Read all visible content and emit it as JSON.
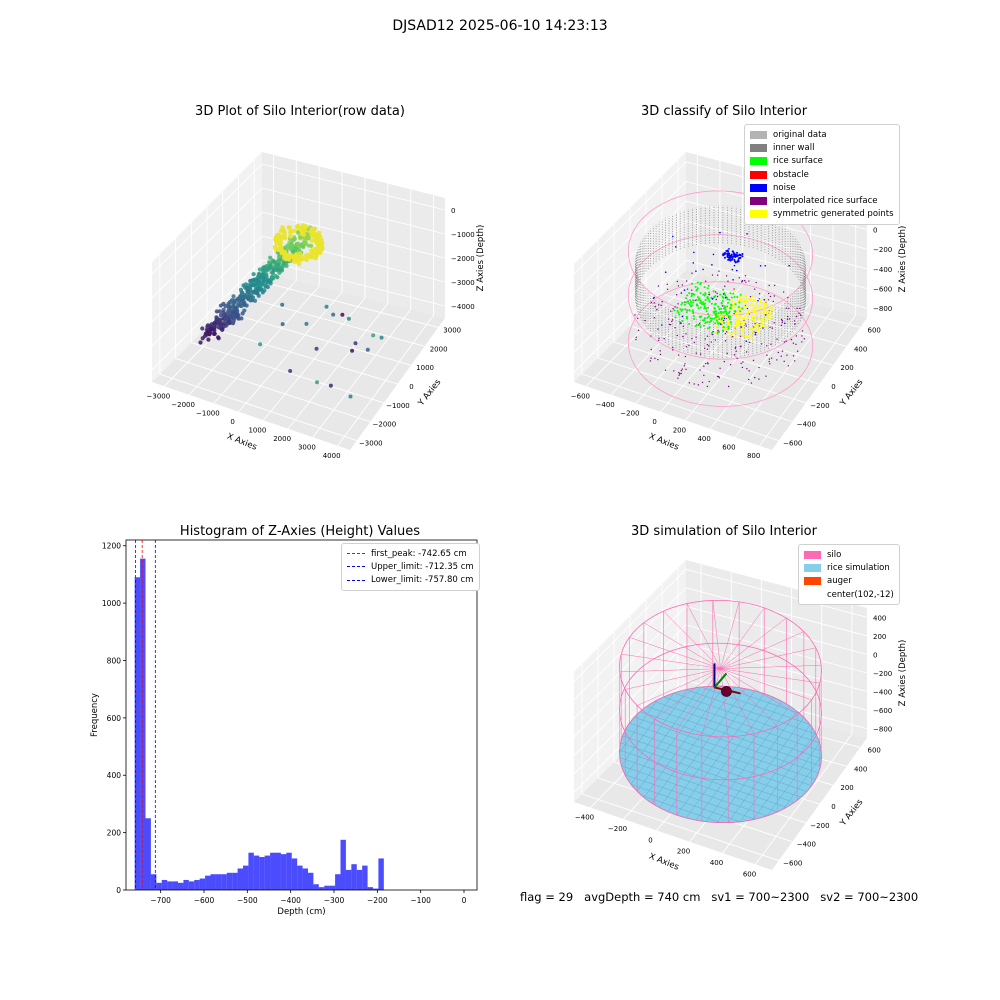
{
  "suptitle": "DJSAD12 2025-06-10 14:23:13",
  "panels": {
    "raw": {
      "title": "3D Plot of Silo Interior(row data)",
      "xlabel": "X Axies",
      "ylabel": "Y Axies",
      "zlabel": "Z Axies (Depth)",
      "xticks": [
        "−3000",
        "−2000",
        "−1000",
        "0",
        "1000",
        "2000",
        "3000",
        "4000"
      ],
      "yticks": [
        "−3000",
        "−2000",
        "−1000",
        "0",
        "1000",
        "2000",
        "3000"
      ],
      "zticks": [
        "−4000",
        "−3000",
        "−2000",
        "−1000",
        "0"
      ]
    },
    "classify": {
      "title": "3D classify of Silo Interior",
      "xlabel": "X Axies",
      "ylabel": "Y Axies",
      "zlabel": "Z Axies (Depth)",
      "xticks": [
        "−600",
        "−400",
        "−200",
        "0",
        "200",
        "400",
        "600",
        "800"
      ],
      "yticks": [
        "−600",
        "−400",
        "−200",
        "0",
        "200",
        "400",
        "600"
      ],
      "zticks": [
        "−800",
        "−600",
        "−400",
        "−200",
        "0",
        "200"
      ],
      "legend": [
        {
          "label": "original data",
          "color": "#b3b3b3"
        },
        {
          "label": "inner wall",
          "color": "#808080"
        },
        {
          "label": "rice surface",
          "color": "#00ff00"
        },
        {
          "label": "obstacle",
          "color": "#ff0000"
        },
        {
          "label": "noise",
          "color": "#0000ff"
        },
        {
          "label": "interpolated rice surface",
          "color": "#800080"
        },
        {
          "label": "symmetric generated points",
          "color": "#ffff00"
        }
      ]
    },
    "simulation": {
      "title": "3D simulation of Silo Interior",
      "xlabel": "X Axies",
      "ylabel": "Y Axies",
      "zlabel": "Z Axies (Depth)",
      "xticks": [
        "−400",
        "−200",
        "0",
        "200",
        "400",
        "600"
      ],
      "yticks": [
        "−600",
        "−400",
        "−200",
        "0",
        "200",
        "400",
        "600"
      ],
      "zticks": [
        "−800",
        "−600",
        "−400",
        "−200",
        "0",
        "200",
        "400"
      ],
      "legend": [
        {
          "label": "silo",
          "color": "#ff69b4"
        },
        {
          "label": "rice simulation",
          "color": "#87ceeb"
        },
        {
          "label": "auger",
          "color": "#ff4500"
        },
        {
          "label": "center(102,-12)",
          "color": ""
        }
      ]
    }
  },
  "status": {
    "flag": "flag = 29",
    "avg": "avgDepth = 740 cm",
    "sv1": "sv1 = 700~2300",
    "sv2": "sv2 = 700~2300"
  },
  "chart_data": [
    {
      "type": "scatter",
      "title": "3D Plot of Silo Interior(row data)",
      "xlabel": "X Axies",
      "ylabel": "Y Axies",
      "zlabel": "Z Axies (Depth)",
      "xlim": [
        -3500,
        4500
      ],
      "ylim": [
        -3500,
        3500
      ],
      "zlim": [
        -4600,
        200
      ],
      "grid": true
    },
    {
      "type": "scatter",
      "title": "3D classify of Silo Interior",
      "xlabel": "X Axies",
      "ylabel": "Y Axies",
      "zlabel": "Z Axies (Depth)",
      "xlim": [
        -700,
        850
      ],
      "ylim": [
        -700,
        700
      ],
      "zlim": [
        -900,
        300
      ],
      "legend_position": "top-right",
      "series": [
        {
          "name": "original data"
        },
        {
          "name": "inner wall"
        },
        {
          "name": "rice surface"
        },
        {
          "name": "obstacle"
        },
        {
          "name": "noise"
        },
        {
          "name": "interpolated rice surface"
        },
        {
          "name": "symmetric generated points"
        }
      ]
    },
    {
      "type": "bar",
      "title": "Histogram of Z-Axies (Height) Values",
      "xlabel": "Depth (cm)",
      "ylabel": "Frequency",
      "xlim": [
        -780,
        30
      ],
      "ylim": [
        0,
        1220
      ],
      "xticks": [
        -700,
        -600,
        -500,
        -400,
        -300,
        -200,
        -100,
        0
      ],
      "xtick_labels": [
        "−700",
        "−600",
        "−500",
        "−400",
        "−300",
        "−200",
        "−100",
        "0"
      ],
      "yticks": [
        0,
        200,
        400,
        600,
        800,
        1000,
        1200
      ],
      "bar_color": "#0000ff",
      "bin_start": -760,
      "bin_width": 12.5,
      "values": [
        1090,
        1155,
        250,
        55,
        25,
        35,
        30,
        30,
        25,
        35,
        30,
        35,
        40,
        50,
        55,
        55,
        55,
        60,
        60,
        75,
        85,
        130,
        120,
        115,
        120,
        130,
        130,
        125,
        130,
        110,
        85,
        75,
        60,
        20,
        10,
        15,
        15,
        55,
        175,
        70,
        90,
        70,
        85,
        10,
        5,
        110
      ],
      "lines": [
        {
          "label": "first_peak: -742.65 cm",
          "x": -742.65,
          "color": "#ff0000"
        },
        {
          "label": "Upper_limit: -712.35 cm",
          "x": -712.35,
          "color": "#0000ff"
        },
        {
          "label": "Lower_limit: -757.80 cm",
          "x": -757.8,
          "color": "#0000ff"
        }
      ],
      "legend_position": "top-right"
    },
    {
      "type": "surface",
      "title": "3D simulation of Silo Interior",
      "xlabel": "X Axies",
      "ylabel": "Y Axies",
      "zlabel": "Z Axies (Depth)",
      "xlim": [
        -500,
        700
      ],
      "ylim": [
        -700,
        700
      ],
      "zlim": [
        -950,
        450
      ],
      "series": [
        {
          "name": "silo"
        },
        {
          "name": "rice simulation"
        },
        {
          "name": "auger"
        },
        {
          "name": "center(102,-12)"
        }
      ],
      "legend_position": "top-right"
    }
  ]
}
